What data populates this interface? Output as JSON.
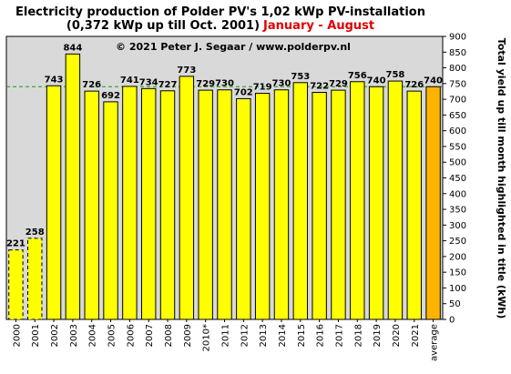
{
  "title_line1": "Electricity production  of Polder PV's 1,02 kWp PV-installation",
  "title_line2_main": "(0,372 kWp up till Oct. 2001)",
  "title_line2_period": "January - August",
  "copyright": "© 2021 Peter J. Segaar / www.polderpv.nl",
  "colors": {
    "bar": "#ffff00",
    "bar_highlight": "#ffb300",
    "plot_bg": "#d9d9d9",
    "avg_line": "#1a9a1a",
    "period_text": "#e00000",
    "highlight_label": "#e00000"
  },
  "chart_data": {
    "type": "bar",
    "title": "Electricity production  of Polder PV's 1,02 kWp PV-installation (0,372 kWp up till Oct. 2001) January - August",
    "categories": [
      "2000",
      "2001",
      "2002",
      "2003",
      "2004",
      "2005",
      "2006",
      "2007",
      "2008",
      "2009",
      "2010*",
      "2011",
      "2012",
      "2013",
      "2014",
      "2015",
      "2016",
      "2017",
      "2018",
      "2019",
      "2020",
      "2021",
      "average"
    ],
    "values": [
      221,
      258,
      743,
      844,
      726,
      692,
      741,
      734,
      727,
      773,
      729,
      730,
      702,
      719,
      730,
      753,
      722,
      729,
      756,
      740,
      758,
      726,
      740
    ],
    "dashed_categories": [
      "2000",
      "2001"
    ],
    "highlight_category": "average",
    "reference_line": 740,
    "ylabel": "Total yield up till month highlighted in title (kWh)",
    "xlabel": "",
    "ylim": [
      0,
      900
    ],
    "yticks": [
      0,
      50,
      100,
      150,
      200,
      250,
      300,
      350,
      400,
      450,
      500,
      550,
      600,
      650,
      700,
      750,
      800,
      850,
      900
    ],
    "y_axis_side": "right",
    "grid": false
  }
}
